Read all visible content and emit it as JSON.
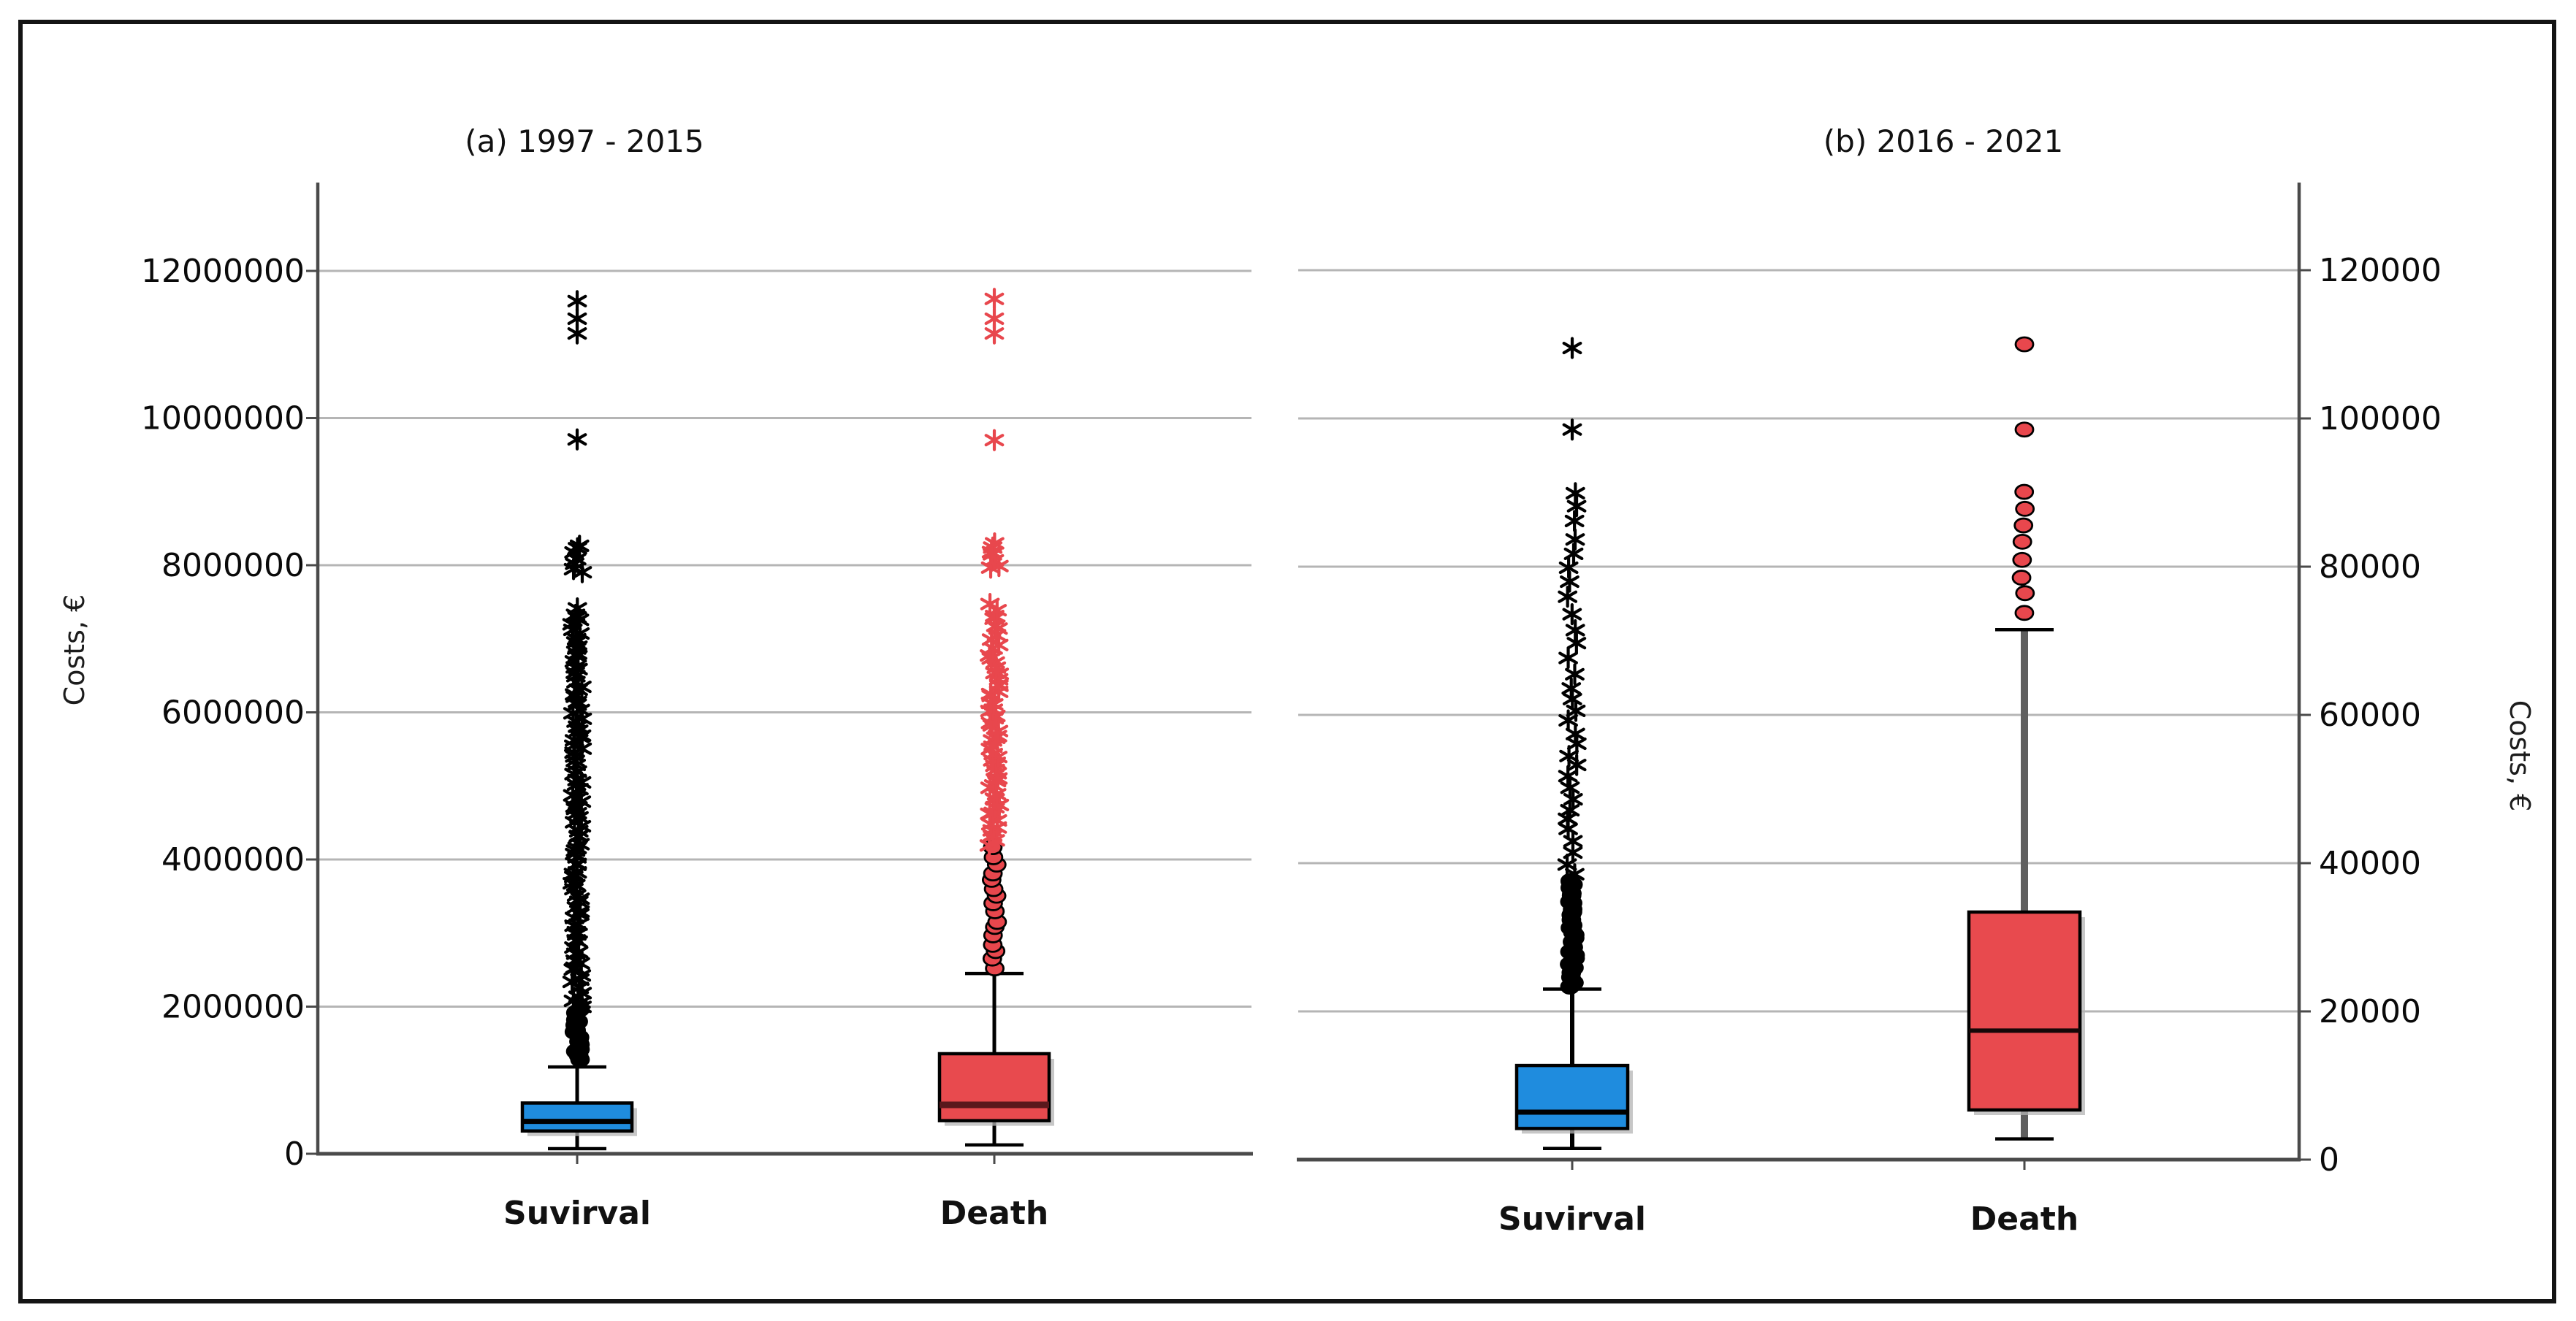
{
  "figure": {
    "background": "#ffffff",
    "border_color": "#141414",
    "gridline_color": "#b5b5b5",
    "spine_color": "#4a4a4a"
  },
  "chart_data": {
    "type": "boxplot",
    "description": "Two-panel box plot of costs in euros for Suvirval vs Death groups, two time periods",
    "panels": [
      {
        "id": "a",
        "title": "(a) 1997 - 2015",
        "ylabel": "Costs, €",
        "ylabel_side": "left",
        "ylim": [
          0,
          13200000
        ],
        "grid": true,
        "ytick_values": [
          0,
          2000000,
          4000000,
          6000000,
          8000000,
          10000000,
          12000000
        ],
        "ytick_labels": [
          "0",
          "2000000",
          "4000000",
          "6000000",
          "8000000",
          "10000000",
          "12000000"
        ],
        "categories": [
          "Suvirval",
          "Death"
        ],
        "series": [
          {
            "name": "Suvirval",
            "box_color": "#1F8CDE",
            "median_color": "#000000",
            "median_width": 7,
            "outlier_color": "#000000",
            "circle_fill": "#000000",
            "whisker_color": "#000000",
            "whisker_width": 5,
            "box": {
              "whisker_low": 70000,
              "q1": 310000,
              "median": 440000,
              "q3": 690000,
              "whisker_high": 1180000
            },
            "dense_outliers": [
              {
                "marker": "circle",
                "from": 1280000,
                "to": 1950000,
                "count": 14
              },
              {
                "marker": "asterisk",
                "from": 1990000,
                "to": 7400000,
                "count": 100
              },
              {
                "marker": "asterisk",
                "from": 7900000,
                "to": 8280000,
                "count": 7
              }
            ],
            "outliers": {
              "marker": "asterisk",
              "values": [
                9710000,
                11150000,
                11350000,
                11590000
              ]
            }
          },
          {
            "name": "Death",
            "box_color": "#E84A4E",
            "median_color": "#5A181C",
            "median_width": 9,
            "outlier_color": "#E8474D",
            "circle_fill": "#E8474D",
            "whisker_color": "#000000",
            "whisker_width": 5,
            "box": {
              "whisker_low": 120000,
              "q1": 450000,
              "median": 665000,
              "q3": 1360000,
              "whisker_high": 2450000
            },
            "dense_outliers": [
              {
                "marker": "circle",
                "from": 2520000,
                "to": 4150000,
                "count": 16
              },
              {
                "marker": "asterisk",
                "from": 4200000,
                "to": 6550000,
                "count": 48
              },
              {
                "marker": "asterisk",
                "from": 6600000,
                "to": 7450000,
                "count": 14
              },
              {
                "marker": "asterisk",
                "from": 7950000,
                "to": 8300000,
                "count": 7
              }
            ],
            "outliers": {
              "marker": "asterisk",
              "values": [
                9700000,
                11150000,
                11350000,
                11620000
              ]
            }
          }
        ]
      },
      {
        "id": "b",
        "title": "(b) 2016 - 2021",
        "ylabel": "Costs, €",
        "ylabel_side": "right",
        "ylim": [
          0,
          132000
        ],
        "grid": true,
        "ytick_values": [
          0,
          20000,
          40000,
          60000,
          80000,
          100000,
          120000
        ],
        "ytick_labels": [
          "0",
          "20000",
          "40000",
          "60000",
          "80000",
          "100000",
          "120000"
        ],
        "categories": [
          "Suvirval",
          "Death"
        ],
        "series": [
          {
            "name": "Suvirval",
            "box_color": "#1F8CDE",
            "median_color": "#000000",
            "median_width": 7,
            "outlier_color": "#000000",
            "circle_fill": "#000000",
            "whisker_color": "#000000",
            "whisker_width": 6,
            "box": {
              "whisker_low": 1500,
              "q1": 4200,
              "median": 6400,
              "q3": 12700,
              "whisker_high": 23000
            },
            "dense_outliers": [
              {
                "marker": "circle",
                "from": 23500,
                "to": 37500,
                "count": 28
              },
              {
                "marker": "asterisk",
                "from": 38500,
                "to": 62000,
                "count": 17
              },
              {
                "marker": "asterisk",
                "from": 63500,
                "to": 90000,
                "count": 14
              }
            ],
            "outliers": {
              "marker": "asterisk",
              "values": [
                98500,
                109500
              ]
            }
          },
          {
            "name": "Death",
            "box_color": "#E84A4E",
            "median_color": "#150808",
            "median_width": 6,
            "outlier_color": "#E8474D",
            "circle_fill": "#E8474D",
            "whisker_color": "#5F5F5F",
            "whisker_width": 10,
            "box": {
              "whisker_low": 2800,
              "q1": 6700,
              "median": 17400,
              "q3": 33400,
              "whisker_high": 71500
            },
            "dense_outliers": [
              {
                "marker": "circle",
                "from": 74000,
                "to": 90000,
                "count": 8
              }
            ],
            "outliers": {
              "marker": "circle",
              "values": [
                98500,
                110000
              ]
            }
          }
        ]
      }
    ]
  }
}
